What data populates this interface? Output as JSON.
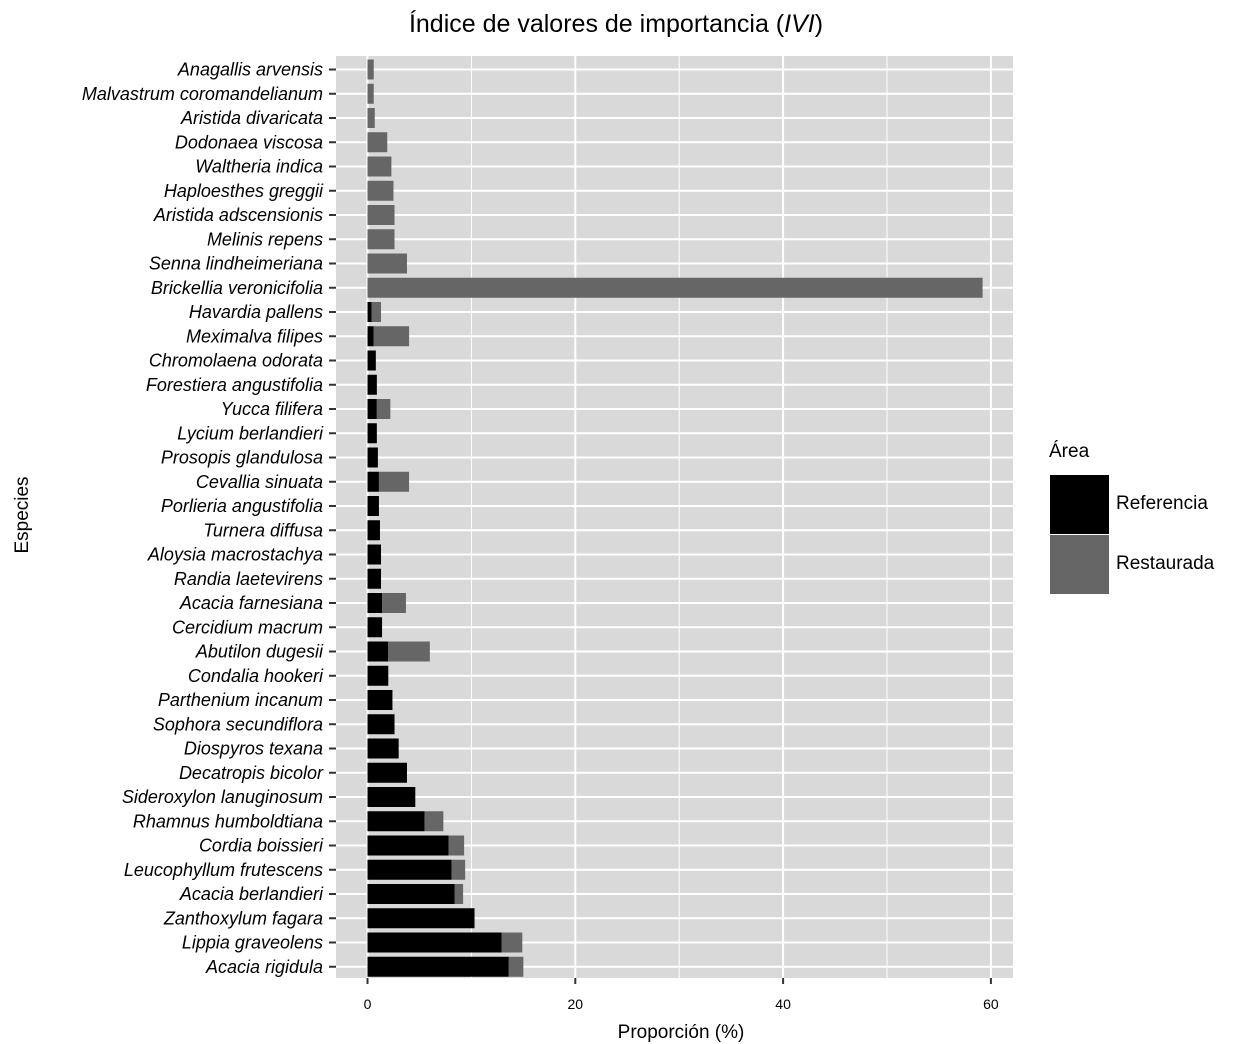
{
  "chart_data": {
    "type": "bar",
    "orientation": "horizontal",
    "stacked": true,
    "title": "Índice de valores de importancia (",
    "title_italic": "IVI",
    "title_close": ")",
    "xlabel": "Proporción (%)",
    "ylabel": "Especies",
    "xlim": [
      -3,
      62
    ],
    "xticks": [
      0,
      20,
      40,
      60
    ],
    "grid": true,
    "legend": {
      "title": "Área",
      "position": "right"
    },
    "categories": [
      "Anagallis arvensis",
      "Malvastrum coromandelianum",
      "Aristida divaricata",
      "Dodonaea viscosa",
      "Waltheria indica",
      "Haploesthes greggii",
      "Aristida adscensionis",
      "Melinis repens",
      "Senna lindheimeriana",
      "Brickellia veronicifolia",
      "Havardia pallens",
      "Meximalva filipes",
      "Chromolaena odorata",
      "Forestiera angustifolia",
      "Yucca filifera",
      "Lycium berlandieri",
      "Prosopis glandulosa",
      "Cevallia sinuata",
      "Porlieria angustifolia",
      "Turnera diffusa",
      "Aloysia macrostachya",
      "Randia laetevirens",
      "Acacia farnesiana",
      "Cercidium macrum",
      "Abutilon dugesii",
      "Condalia hookeri",
      "Parthenium incanum",
      "Sophora secundiflora",
      "Diospyros texana",
      "Decatropis bicolor",
      "Sideroxylon lanuginosum",
      "Rhamnus humboldtiana",
      "Cordia boissieri",
      "Leucophyllum frutescens",
      "Acacia berlandieri",
      "Zanthoxylum fagara",
      "Lippia graveolens",
      "Acacia rigidula"
    ],
    "series": [
      {
        "name": "Referencia",
        "color": "#000000",
        "values": [
          0,
          0,
          0,
          0,
          0,
          0,
          0,
          0,
          0,
          0,
          0.4,
          0.6,
          0.8,
          0.9,
          0.9,
          0.9,
          1.0,
          1.1,
          1.1,
          1.2,
          1.3,
          1.3,
          1.4,
          1.4,
          2.0,
          2.0,
          2.4,
          2.6,
          3.0,
          3.8,
          4.6,
          5.5,
          7.8,
          8.1,
          8.4,
          10.3,
          12.9,
          13.6
        ]
      },
      {
        "name": "Restaurada",
        "color": "#666666",
        "values": [
          0.6,
          0.6,
          0.7,
          1.9,
          2.3,
          2.5,
          2.6,
          2.6,
          3.8,
          59.2,
          0.9,
          3.4,
          0,
          0,
          1.3,
          0,
          0,
          2.9,
          0,
          0,
          0,
          0,
          2.3,
          0,
          4.0,
          0,
          0,
          0,
          0,
          0,
          0,
          1.8,
          1.5,
          1.3,
          0.8,
          0,
          2.0,
          1.4
        ]
      }
    ]
  }
}
